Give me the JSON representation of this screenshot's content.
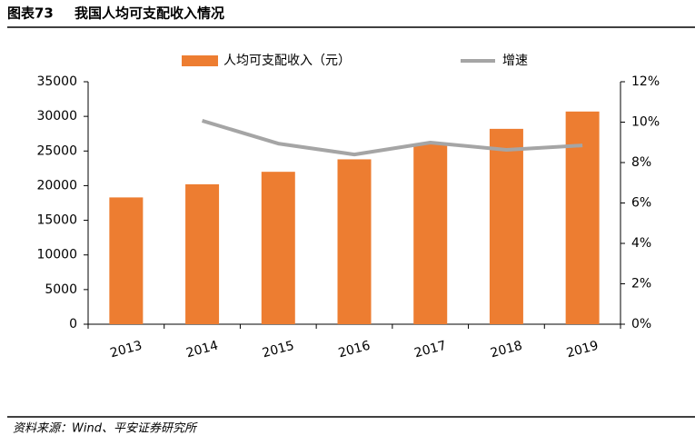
{
  "figure_label": "图表73",
  "chart_data": {
    "type": "bar-line",
    "title": "我国人均可支配收入情况",
    "categories": [
      "2013",
      "2014",
      "2015",
      "2016",
      "2017",
      "2018",
      "2019"
    ],
    "series": [
      {
        "name": "人均可支配收入（元）",
        "type": "bar",
        "color": "#ed7d31",
        "values": [
          18300,
          20200,
          22000,
          23800,
          26000,
          28200,
          30700
        ]
      },
      {
        "name": "增速",
        "type": "line",
        "axis": "y2",
        "color": "#a5a5a5",
        "values": [
          null,
          10.07,
          8.94,
          8.4,
          8.99,
          8.63,
          8.85
        ]
      }
    ],
    "ylim": [
      0,
      35000
    ],
    "yticks": [
      0,
      5000,
      10000,
      15000,
      20000,
      25000,
      30000,
      35000
    ],
    "y2lim": [
      0,
      12
    ],
    "y2ticks": [
      {
        "value": 0,
        "label": "0%"
      },
      {
        "value": 2,
        "label": "2%"
      },
      {
        "value": 4,
        "label": "4%"
      },
      {
        "value": 6,
        "label": "6%"
      },
      {
        "value": 8,
        "label": "8%"
      },
      {
        "value": 10,
        "label": "10%"
      },
      {
        "value": 12,
        "label": "12%"
      }
    ],
    "legend": "top"
  },
  "source": "资料来源：Wind、平安证券研究所"
}
